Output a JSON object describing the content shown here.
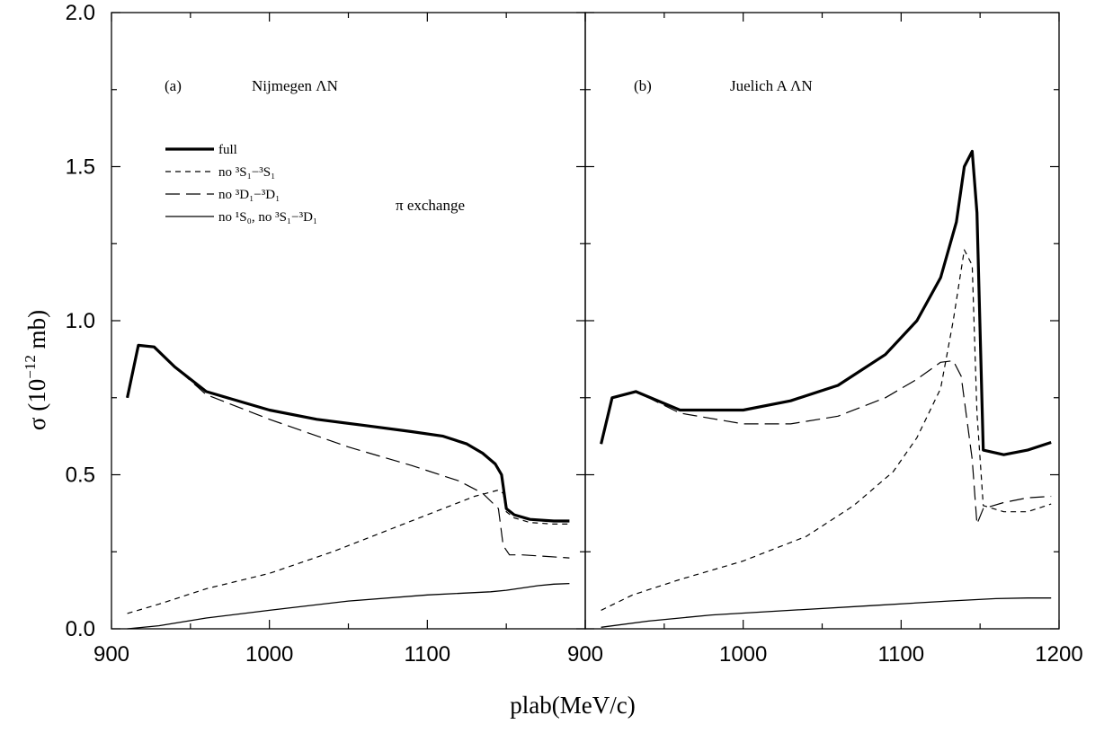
{
  "chart_data": {
    "type": "line",
    "xlabel": "plab(MeV/c)",
    "ylabel": "σ (10",
    "ylabel_exp": "−12",
    "ylabel_unit": " mb)",
    "ylim": [
      0,
      2.0
    ],
    "yticks": [
      "0.0",
      "0.5",
      "1.0",
      "1.5",
      "2.0"
    ],
    "grid": false,
    "legend_position": "top-left of panel (a)",
    "legend": [
      {
        "key": "full",
        "label": "full",
        "style": "thick-solid"
      },
      {
        "key": "no3s1",
        "label": "no ³S₁−³S₁",
        "style": "short-dash"
      },
      {
        "key": "no3d1",
        "label": "no ³D₁−³D₁",
        "style": "long-dash"
      },
      {
        "key": "nopi",
        "label": "no ¹S₀, no ³S₁−³D₁",
        "style": "thin-solid"
      }
    ],
    "annotation": "π exchange",
    "panels": [
      {
        "tag": "(a)",
        "title": "Nijmegen ΛN",
        "xlim": [
          900,
          1200
        ],
        "xticks": [
          {
            "v": 900,
            "t": "900"
          },
          {
            "v": 1000,
            "t": "1000"
          },
          {
            "v": 1100,
            "t": "1100"
          }
        ],
        "series": [
          {
            "key": "full",
            "x": [
              910,
              917,
              927,
              940,
              960,
              1000,
              1030,
              1060,
              1090,
              1110,
              1125,
              1135,
              1143,
              1147,
              1150,
              1155,
              1165,
              1180,
              1190
            ],
            "y": [
              0.75,
              0.92,
              0.915,
              0.85,
              0.77,
              0.71,
              0.68,
              0.66,
              0.64,
              0.625,
              0.6,
              0.57,
              0.535,
              0.5,
              0.39,
              0.37,
              0.355,
              0.35,
              0.35
            ]
          },
          {
            "key": "no3s1",
            "x": [
              910,
              930,
              960,
              1000,
              1040,
              1080,
              1110,
              1130,
              1145,
              1148,
              1150,
              1155,
              1165,
              1180,
              1190
            ],
            "y": [
              0.05,
              0.08,
              0.13,
              0.18,
              0.25,
              0.33,
              0.39,
              0.43,
              0.45,
              0.44,
              0.38,
              0.36,
              0.345,
              0.34,
              0.34
            ]
          },
          {
            "key": "no3d1",
            "x": [
              910,
              917,
              927,
              940,
              960,
              1000,
              1050,
              1090,
              1120,
              1135,
              1145,
              1148,
              1152,
              1160,
              1175,
              1190
            ],
            "y": [
              0.75,
              0.92,
              0.915,
              0.85,
              0.76,
              0.68,
              0.59,
              0.53,
              0.48,
              0.44,
              0.39,
              0.27,
              0.24,
              0.24,
              0.235,
              0.23
            ]
          },
          {
            "key": "nopi",
            "x": [
              910,
              930,
              960,
              1000,
              1050,
              1100,
              1140,
              1150,
              1170,
              1180,
              1190
            ],
            "y": [
              0.0,
              0.01,
              0.035,
              0.06,
              0.09,
              0.11,
              0.12,
              0.125,
              0.14,
              0.145,
              0.147
            ]
          }
        ]
      },
      {
        "tag": "(b)",
        "title": "Juelich A ΛN",
        "xlim": [
          900,
          1200
        ],
        "xticks": [
          {
            "v": 900,
            "t": "900"
          },
          {
            "v": 1000,
            "t": "1000"
          },
          {
            "v": 1100,
            "t": "1100"
          },
          {
            "v": 1200,
            "t": "1200"
          }
        ],
        "series": [
          {
            "key": "full",
            "x": [
              910,
              917,
              932,
              960,
              1000,
              1030,
              1060,
              1090,
              1110,
              1125,
              1135,
              1140,
              1145,
              1148,
              1152,
              1165,
              1180,
              1195
            ],
            "y": [
              0.6,
              0.75,
              0.77,
              0.71,
              0.71,
              0.74,
              0.79,
              0.89,
              1.0,
              1.14,
              1.32,
              1.5,
              1.55,
              1.35,
              0.58,
              0.565,
              0.58,
              0.605
            ]
          },
          {
            "key": "no3s1",
            "x": [
              910,
              930,
              960,
              1000,
              1040,
              1070,
              1095,
              1110,
              1125,
              1133,
              1140,
              1145,
              1148,
              1152,
              1165,
              1180,
              1195
            ],
            "y": [
              0.06,
              0.11,
              0.16,
              0.22,
              0.3,
              0.4,
              0.51,
              0.62,
              0.78,
              1.0,
              1.23,
              1.18,
              0.7,
              0.4,
              0.38,
              0.38,
              0.405
            ]
          },
          {
            "key": "no3d1",
            "x": [
              910,
              917,
              932,
              960,
              1000,
              1030,
              1060,
              1090,
              1110,
              1125,
              1133,
              1138,
              1145,
              1148,
              1152,
              1165,
              1180,
              1195
            ],
            "y": [
              0.6,
              0.75,
              0.77,
              0.7,
              0.665,
              0.665,
              0.69,
              0.75,
              0.81,
              0.865,
              0.87,
              0.82,
              0.55,
              0.34,
              0.39,
              0.41,
              0.425,
              0.43
            ]
          },
          {
            "key": "nopi",
            "x": [
              910,
              940,
              980,
              1030,
              1080,
              1130,
              1160,
              1180,
              1195
            ],
            "y": [
              0.005,
              0.025,
              0.045,
              0.06,
              0.075,
              0.09,
              0.098,
              0.1,
              0.1
            ]
          }
        ]
      }
    ]
  },
  "styles": {
    "full": {
      "width": 3.2,
      "dash": ""
    },
    "no3s1": {
      "width": 1.2,
      "dash": "6,5"
    },
    "no3d1": {
      "width": 1.2,
      "dash": "16,7"
    },
    "nopi": {
      "width": 1.3,
      "dash": ""
    }
  },
  "colors": {
    "line": "#000000",
    "frame": "#000000",
    "background": "#ffffff"
  }
}
